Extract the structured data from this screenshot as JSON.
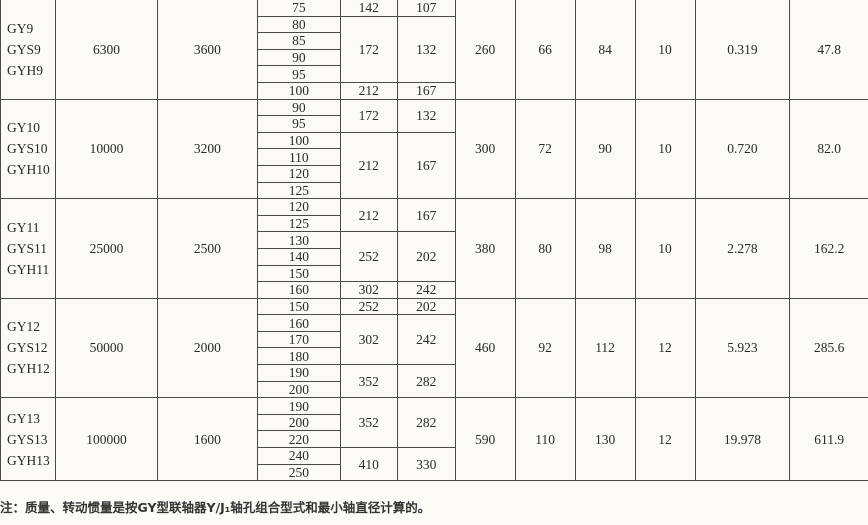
{
  "groups": [
    {
      "models": [
        "GY9",
        "GYS9",
        "GYH9"
      ],
      "torque": "6300",
      "speed": "3600",
      "D": "260",
      "D1": "66",
      "b": "84",
      "S": "10",
      "inertia": "0.319",
      "mass": "47.8",
      "segments": [
        {
          "bores": [
            "75"
          ],
          "L1": "142",
          "L2": "107"
        },
        {
          "bores": [
            "80",
            "85",
            "90",
            "95"
          ],
          "L1": "172",
          "L2": "132"
        },
        {
          "bores": [
            "100"
          ],
          "L1": "212",
          "L2": "167"
        }
      ]
    },
    {
      "models": [
        "GY10",
        "GYS10",
        "GYH10"
      ],
      "torque": "10000",
      "speed": "3200",
      "D": "300",
      "D1": "72",
      "b": "90",
      "S": "10",
      "inertia": "0.720",
      "mass": "82.0",
      "segments": [
        {
          "bores": [
            "90",
            "95"
          ],
          "L1": "172",
          "L2": "132"
        },
        {
          "bores": [
            "100",
            "110",
            "120",
            "125"
          ],
          "L1": "212",
          "L2": "167"
        }
      ]
    },
    {
      "models": [
        "GY11",
        "GYS11",
        "GYH11"
      ],
      "torque": "25000",
      "speed": "2500",
      "D": "380",
      "D1": "80",
      "b": "98",
      "S": "10",
      "inertia": "2.278",
      "mass": "162.2",
      "segments": [
        {
          "bores": [
            "120",
            "125"
          ],
          "L1": "212",
          "L2": "167"
        },
        {
          "bores": [
            "130",
            "140",
            "150"
          ],
          "L1": "252",
          "L2": "202"
        },
        {
          "bores": [
            "160"
          ],
          "L1": "302",
          "L2": "242"
        }
      ]
    },
    {
      "models": [
        "GY12",
        "GYS12",
        "GYH12"
      ],
      "torque": "50000",
      "speed": "2000",
      "D": "460",
      "D1": "92",
      "b": "112",
      "S": "12",
      "inertia": "5.923",
      "mass": "285.6",
      "segments": [
        {
          "bores": [
            "150"
          ],
          "L1": "252",
          "L2": "202"
        },
        {
          "bores": [
            "160",
            "170",
            "180"
          ],
          "L1": "302",
          "L2": "242"
        },
        {
          "bores": [
            "190",
            "200"
          ],
          "L1": "352",
          "L2": "282"
        }
      ]
    },
    {
      "models": [
        "GY13",
        "GYS13",
        "GYH13"
      ],
      "torque": "100000",
      "speed": "1600",
      "D": "590",
      "D1": "110",
      "b": "130",
      "S": "12",
      "inertia": "19.978",
      "mass": "611.9",
      "segments": [
        {
          "bores": [
            "190",
            "200",
            "220"
          ],
          "L1": "352",
          "L2": "282"
        },
        {
          "bores": [
            "240",
            "250"
          ],
          "L1": "410",
          "L2": "330"
        }
      ]
    }
  ],
  "note": "注：质量、转动惯量是按GY型联轴器Y/J₁轴孔组合型式和最小轴直径计算的。"
}
